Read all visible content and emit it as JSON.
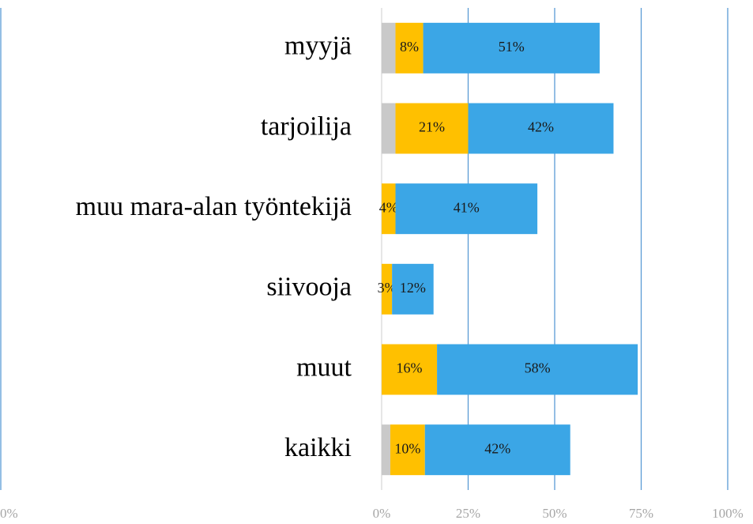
{
  "chart_data": {
    "type": "stacked-barh",
    "categories": [
      "myyjä",
      "tarjoilija",
      "muu mara-alan työntekijä",
      "siivooja",
      "muut",
      "kaikki"
    ],
    "series": [
      {
        "color": "#c9c9c9",
        "values": [
          4,
          4,
          0,
          0,
          0,
          2.5
        ]
      },
      {
        "color": "#ffc000",
        "values": [
          8,
          21,
          4,
          3,
          16,
          10
        ],
        "value_labels": [
          "8%",
          "21%",
          "4%",
          "3%",
          "16%",
          "10%"
        ]
      },
      {
        "color": "#3ba6e6",
        "values": [
          51,
          42,
          41,
          12,
          58,
          42
        ],
        "value_labels": [
          "51%",
          "42%",
          "41%",
          "12%",
          "58%",
          "42%"
        ]
      }
    ],
    "xlim": [
      0,
      100
    ],
    "xticks": [
      {
        "value": 0,
        "label": "0%"
      },
      {
        "value": 25,
        "label": "25%"
      },
      {
        "value": 50,
        "label": "50%"
      },
      {
        "value": 75,
        "label": "75%"
      },
      {
        "value": 100,
        "label": "100%"
      }
    ],
    "secondary_xticks": [
      {
        "value": 0,
        "label": "0%"
      }
    ],
    "grid": true,
    "grid_color": "#5b9bd5"
  }
}
